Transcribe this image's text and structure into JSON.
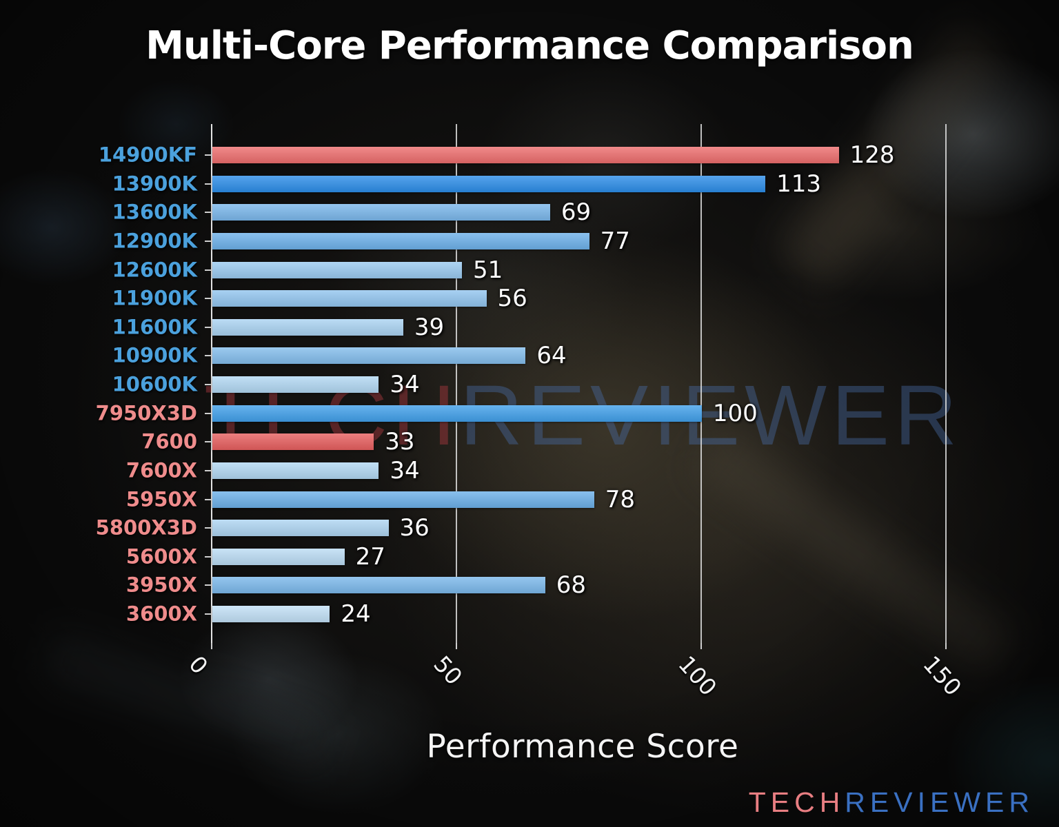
{
  "title": "Multi-Core Performance Comparison",
  "watermark": {
    "tech": "TECH",
    "reviewer": "REVIEWER"
  },
  "logo": {
    "tech": "TECH",
    "reviewer": "REVIEWER"
  },
  "colors": {
    "intel_label": "#4ba1dd",
    "amd_label": "#ef8c8c",
    "highlight_bar": "#ed6d6d",
    "gridline": "#dedede",
    "text": "#ffffff"
  },
  "chart_data": {
    "type": "bar",
    "orientation": "horizontal",
    "title": "Multi-Core Performance Comparison",
    "xlabel": "Performance Score",
    "ylabel": "",
    "xlim": [
      0,
      162.7
    ],
    "xticks": [
      0,
      50,
      100,
      150
    ],
    "grid": "vertical-gridlines-at-xticks",
    "legend": "none",
    "value_labels": "shown at bar ends",
    "bars": [
      {
        "label": "14900KF",
        "value": 128,
        "vendor": "intel",
        "bar_color": "#ed6d6d",
        "label_color": "#4ba1dd"
      },
      {
        "label": "13900K",
        "value": 113,
        "vendor": "intel",
        "bar_color": "#2c8de8",
        "label_color": "#4ba1dd"
      },
      {
        "label": "13600K",
        "value": 69,
        "vendor": "intel",
        "bar_color": "#7ab7eb",
        "label_color": "#4ba1dd"
      },
      {
        "label": "12900K",
        "value": 77,
        "vendor": "intel",
        "bar_color": "#6db1ea",
        "label_color": "#4ba1dd"
      },
      {
        "label": "12600K",
        "value": 51,
        "vendor": "intel",
        "bar_color": "#9acaf0",
        "label_color": "#4ba1dd"
      },
      {
        "label": "11900K",
        "value": 56,
        "vendor": "intel",
        "bar_color": "#92c5ef",
        "label_color": "#4ba1dd"
      },
      {
        "label": "11600K",
        "value": 39,
        "vendor": "intel",
        "bar_color": "#aad3f2",
        "label_color": "#4ba1dd"
      },
      {
        "label": "10900K",
        "value": 64,
        "vendor": "intel",
        "bar_color": "#83bdec",
        "label_color": "#4ba1dd"
      },
      {
        "label": "10600K",
        "value": 34,
        "vendor": "intel",
        "bar_color": "#b2d8f3",
        "label_color": "#4ba1dd"
      },
      {
        "label": "7950X3D",
        "value": 100,
        "vendor": "amd",
        "bar_color": "#41a0ea",
        "label_color": "#ef8c8c"
      },
      {
        "label": "7600",
        "value": 33,
        "vendor": "amd",
        "bar_color": "#e75f5f",
        "label_color": "#ef8c8c"
      },
      {
        "label": "7600X",
        "value": 34,
        "vendor": "amd",
        "bar_color": "#b2d8f3",
        "label_color": "#ef8c8c"
      },
      {
        "label": "5950X",
        "value": 78,
        "vendor": "amd",
        "bar_color": "#6cb0e9",
        "label_color": "#ef8c8c"
      },
      {
        "label": "5800X3D",
        "value": 36,
        "vendor": "amd",
        "bar_color": "#aed5f2",
        "label_color": "#ef8c8c"
      },
      {
        "label": "5600X",
        "value": 27,
        "vendor": "amd",
        "bar_color": "#bbdcf4",
        "label_color": "#ef8c8c"
      },
      {
        "label": "3950X",
        "value": 68,
        "vendor": "amd",
        "bar_color": "#7bb8eb",
        "label_color": "#ef8c8c"
      },
      {
        "label": "3600X",
        "value": 24,
        "vendor": "amd",
        "bar_color": "#c2e0f6",
        "label_color": "#ef8c8c"
      }
    ]
  }
}
